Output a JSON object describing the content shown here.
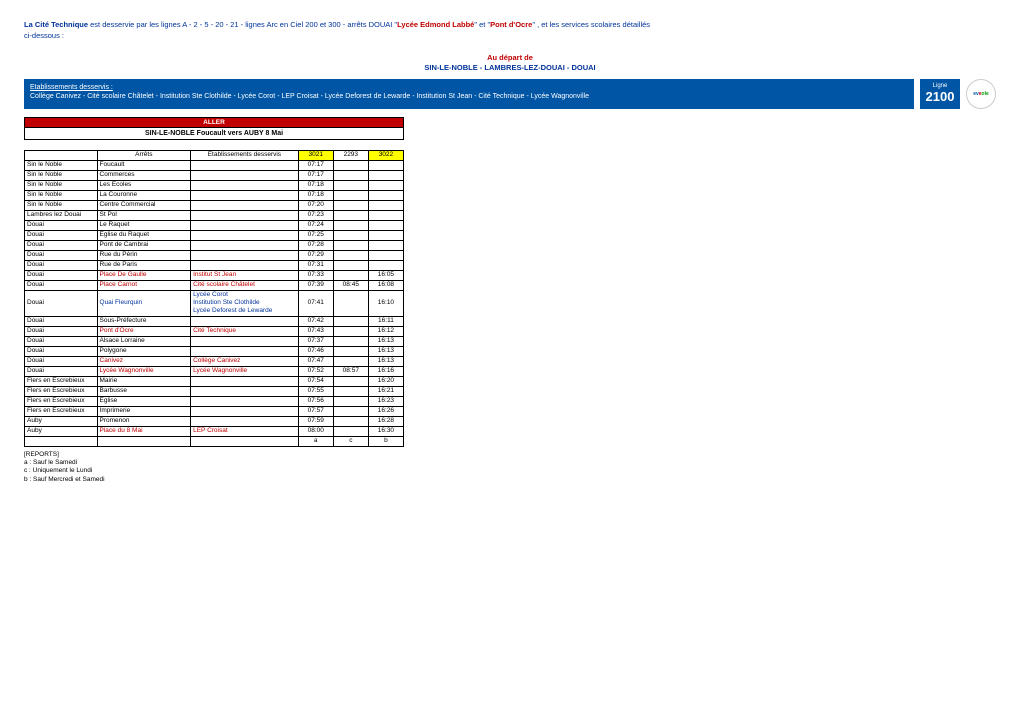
{
  "intro": {
    "prefix_bold": "La Cité Technique",
    "mid": " est desservie par les lignes A - 2 - 5 - 20 - 21 - lignes Arc en Ciel 200 et 300 - arrêts DOUAI \"",
    "red1": "Lycée Edmond Labbé",
    "mid2": "\" et \"",
    "red2": "Pont d'Ocre",
    "tail": "\" , et les services scolaires détaillés",
    "line2": "ci-dessous :"
  },
  "center": {
    "l1": "Au départ de",
    "l2": "SIN-LE-NOBLE - LAMBRES-LEZ-DOUAI - DOUAI"
  },
  "etab": {
    "title": "Etablissements desservis :",
    "text": "Collège Canivez - Cité scolaire Châtelet - Institution Ste Clothilde - Lycée Corot - LEP Croisat - Lycée Deforest de Lewarde - Institution St Jean - Cité Technique - Lycée Wagnonville"
  },
  "ligne": {
    "label": "Ligne",
    "num": "2100"
  },
  "direction": {
    "aller": "ALLER",
    "route": "SIN-LE-NOBLE Foucault vers AUBY 8 Mai"
  },
  "headers": {
    "arrets": "Arrêts",
    "etab": "Etablissements desservis",
    "c1": "3021",
    "c2": "2293",
    "c3": "3022"
  },
  "rows": [
    {
      "com": "Sin le Noble",
      "arr": "Foucault",
      "etab": "",
      "t": [
        "07:17",
        "",
        ""
      ]
    },
    {
      "com": "Sin le Noble",
      "arr": "Commerces",
      "etab": "",
      "t": [
        "07:17",
        "",
        ""
      ]
    },
    {
      "com": "Sin le Noble",
      "arr": "Les Ecoles",
      "etab": "",
      "t": [
        "07:18",
        "",
        ""
      ]
    },
    {
      "com": "Sin le Noble",
      "arr": "La Couronne",
      "etab": "",
      "t": [
        "07:18",
        "",
        ""
      ]
    },
    {
      "com": "Sin le Noble",
      "arr": "Centre Commercial",
      "etab": "",
      "t": [
        "07:20",
        "",
        ""
      ]
    },
    {
      "com": "Lambres lez Douai",
      "arr": "St Pol",
      "etab": "",
      "t": [
        "07:23",
        "",
        ""
      ]
    },
    {
      "com": "Douai",
      "arr": "Le Raquet",
      "etab": "",
      "t": [
        "07:24",
        "",
        ""
      ]
    },
    {
      "com": "Douai",
      "arr": "Eglise du Raquet",
      "etab": "",
      "t": [
        "07:25",
        "",
        ""
      ]
    },
    {
      "com": "Douai",
      "arr": "Pont de Cambrai",
      "etab": "",
      "t": [
        "07:28",
        "",
        ""
      ]
    },
    {
      "com": "Douai",
      "arr": "Rue du Périn",
      "etab": "",
      "t": [
        "07:29",
        "",
        ""
      ]
    },
    {
      "com": "Douai",
      "arr": "Rue de Paris",
      "etab": "",
      "t": [
        "07:31",
        "",
        ""
      ]
    },
    {
      "com": "Douai",
      "arr": "Place De Gaulle",
      "arr_color": "red",
      "etab": "Institut St Jean",
      "etab_color": "red",
      "t": [
        "07:33",
        "",
        "16:05"
      ]
    },
    {
      "com": "Douai",
      "arr": "Place Carnot",
      "arr_color": "red",
      "etab": "Cité scolaire Châtelet",
      "etab_color": "red",
      "t": [
        "07:39",
        "08:45",
        "16:08"
      ]
    },
    {
      "com": "Douai",
      "arr": "Quai Fleurquin",
      "arr_color": "blue",
      "etab_multiline": [
        "Lycée Corot",
        "Institution Ste Clothilde",
        "Lycée Deforest de Lewarde"
      ],
      "etab_color": "blue",
      "t": [
        "07:41",
        "",
        "16:10"
      ]
    },
    {
      "com": "Douai",
      "arr": "Sous-Préfecture",
      "etab": "",
      "t": [
        "07:42",
        "",
        "16:11"
      ]
    },
    {
      "com": "Douai",
      "arr": "Pont d'Ocre",
      "arr_color": "red",
      "etab": "Cité Technique",
      "etab_color": "red",
      "t": [
        "07:43",
        "",
        "16:12"
      ]
    },
    {
      "com": "Douai",
      "arr": "Alsace Lorraine",
      "etab": "",
      "t": [
        "07:37",
        "",
        "16:13"
      ]
    },
    {
      "com": "Douai",
      "arr": "Polygone",
      "etab": "",
      "t": [
        "07:46",
        "",
        "16:13"
      ]
    },
    {
      "com": "Douai",
      "arr": "Canivez",
      "arr_color": "red",
      "etab": "Collège Canivez",
      "etab_color": "red",
      "t": [
        "07:47",
        "",
        "16:13"
      ]
    },
    {
      "com": "Douai",
      "arr": "Lycée Wagnonville",
      "arr_color": "red",
      "etab": "Lycée Wagnonville",
      "etab_color": "red",
      "t": [
        "07:52",
        "08:57",
        "16:16"
      ]
    },
    {
      "com": "Flers en Escrebieux",
      "arr": "Mairie",
      "etab": "",
      "t": [
        "07:54",
        "",
        "16:20"
      ]
    },
    {
      "com": "Flers en Escrebieux",
      "arr": "Barbusse",
      "etab": "",
      "t": [
        "07:55",
        "",
        "16:21"
      ]
    },
    {
      "com": "Flers en Escrebieux",
      "arr": "Eglise",
      "etab": "",
      "t": [
        "07:56",
        "",
        "16:23"
      ]
    },
    {
      "com": "Flers en Escrebieux",
      "arr": "Imprimerie",
      "etab": "",
      "t": [
        "07:57",
        "",
        "16:26"
      ]
    },
    {
      "com": "Auby",
      "arr": "Promenon",
      "etab": "",
      "t": [
        "07:59",
        "",
        "16:28"
      ]
    },
    {
      "com": "Auby",
      "arr": "Place du 8 Mai",
      "arr_color": "red",
      "etab": "LEP Croisat",
      "etab_color": "red",
      "t": [
        "08:00",
        "",
        "16:30"
      ]
    }
  ],
  "footrow": [
    "",
    "",
    "",
    "a",
    "c",
    "b"
  ],
  "reports": {
    "title": "[REPORTS]",
    "a": "a : Sauf le Samedi",
    "c": "c : Uniquement le Lundi",
    "b": "b : Sauf Mercredi et Samedi"
  }
}
